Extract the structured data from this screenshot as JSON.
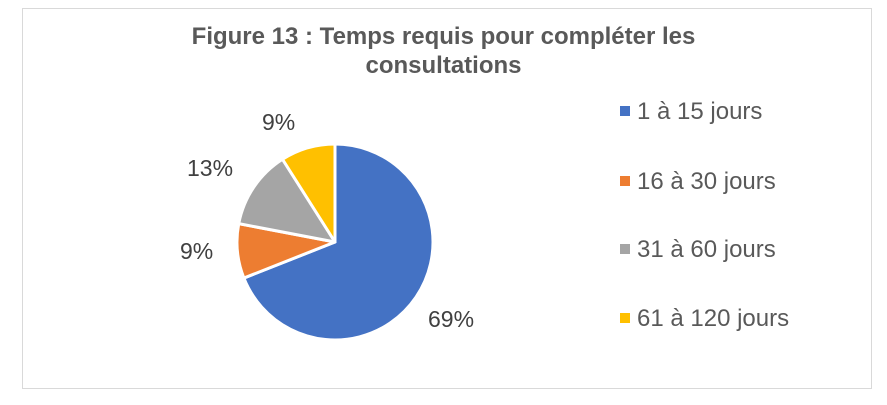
{
  "chart_data": {
    "type": "pie",
    "title": "Figure 13 : Temps requis pour compléter les consultations",
    "categories": [
      "1 à 15 jours",
      "16 à 30 jours",
      "31 à 60 jours",
      "61 à 120 jours"
    ],
    "values": [
      69,
      9,
      13,
      9
    ],
    "data_labels": [
      "69%",
      "9%",
      "13%",
      "9%"
    ],
    "colors": [
      "#4472c4",
      "#ed7d31",
      "#a5a5a5",
      "#ffc000"
    ],
    "legend_position": "right",
    "start_angle": "12 o'clock, clockwise"
  },
  "title": {
    "line1": "Figure 13 : Temps requis pour compléter les",
    "line2": "consultations"
  },
  "legend": {
    "items": [
      {
        "label": "1 à 15 jours",
        "color": "#4472c4"
      },
      {
        "label": "16 à 30 jours",
        "color": "#ed7d31"
      },
      {
        "label": "31 à 60 jours",
        "color": "#a5a5a5"
      },
      {
        "label": "61 à 120 jours",
        "color": "#ffc000"
      }
    ]
  },
  "labels": {
    "l0": "69%",
    "l1": "9%",
    "l2": "13%",
    "l3": "9%"
  }
}
